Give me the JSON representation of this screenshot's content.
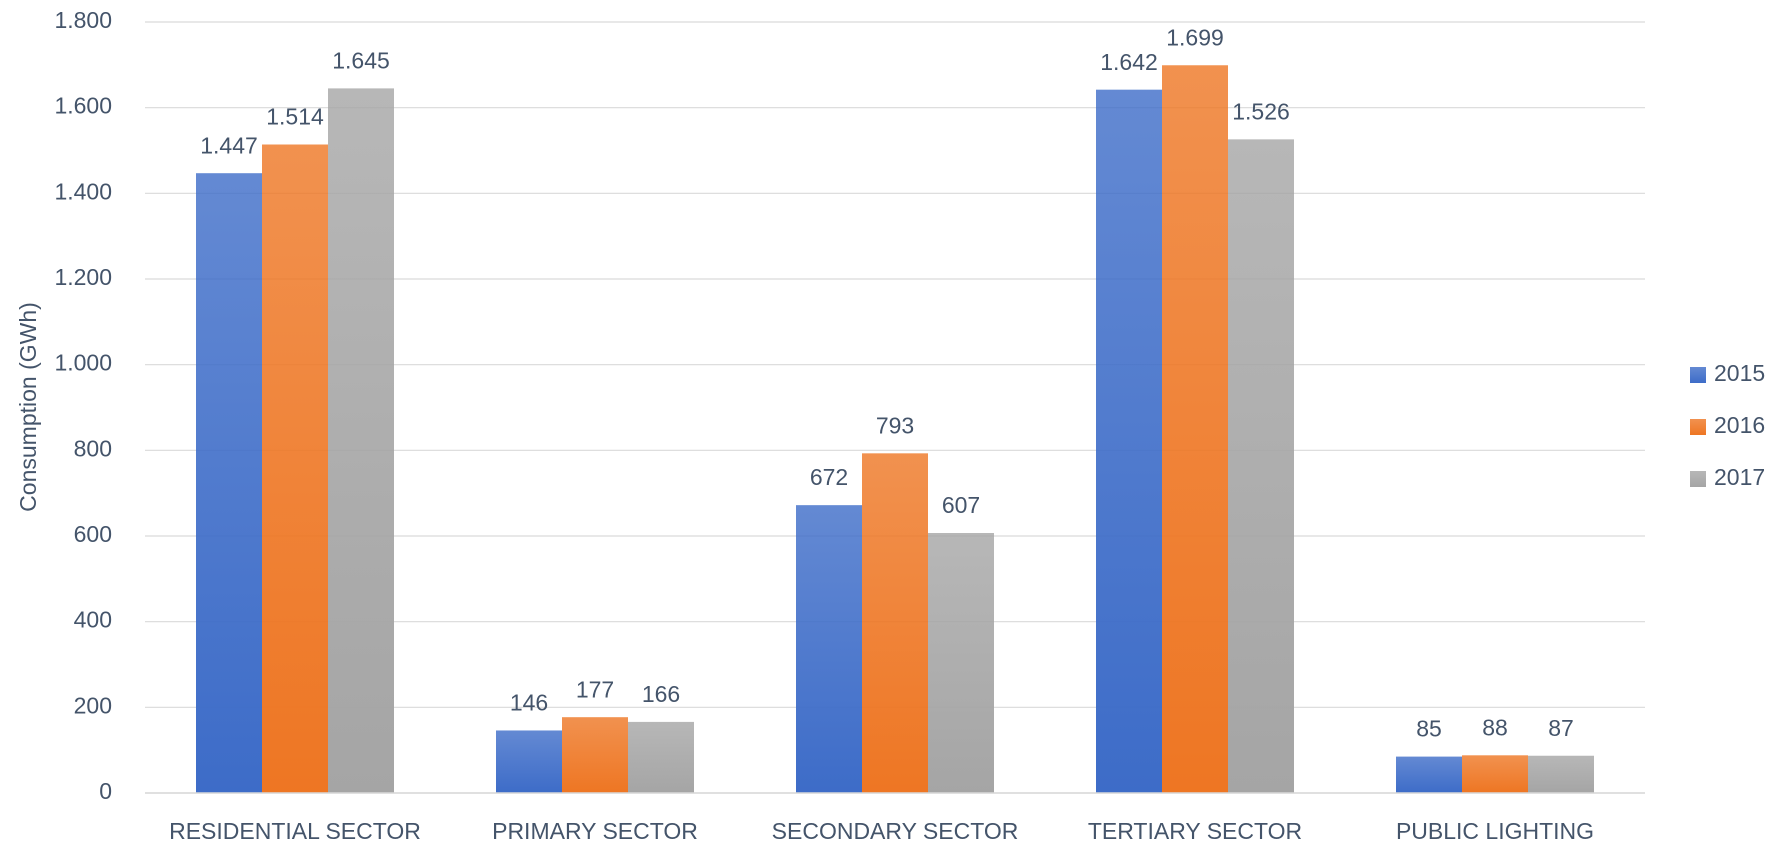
{
  "chart_data": {
    "type": "bar",
    "y_axis_label": "Consumption (GWh)",
    "categories": [
      "RESIDENTIAL SECTOR",
      "PRIMARY SECTOR",
      "SECONDARY SECTOR",
      "TERTIARY SECTOR",
      "PUBLIC LIGHTING"
    ],
    "series": [
      {
        "name": "2015",
        "color": "#3d6cc8",
        "values": [
          1447,
          146,
          672,
          1642,
          85
        ],
        "value_labels": [
          "1.447",
          "146",
          "672",
          "1.642",
          "85"
        ]
      },
      {
        "name": "2016",
        "color": "#ee7623",
        "values": [
          1514,
          177,
          793,
          1699,
          88
        ],
        "value_labels": [
          "1.514",
          "177",
          "793",
          "1.699",
          "88"
        ]
      },
      {
        "name": "2017",
        "color": "#a5a5a5",
        "values": [
          1645,
          166,
          607,
          1526,
          87
        ],
        "value_labels": [
          "1.645",
          "166",
          "607",
          "1.526",
          "87"
        ]
      }
    ],
    "ylim": [
      0,
      1800
    ],
    "yticks": [
      0,
      200,
      400,
      600,
      800,
      {
        "value": 1000,
        "label": "1.000"
      },
      {
        "value": 1200,
        "label": "1.200"
      },
      {
        "value": 1400,
        "label": "1.400"
      },
      {
        "value": 1600,
        "label": "1.600"
      },
      {
        "value": 1800,
        "label": "1.800"
      }
    ],
    "grid": true,
    "legend": "right"
  }
}
